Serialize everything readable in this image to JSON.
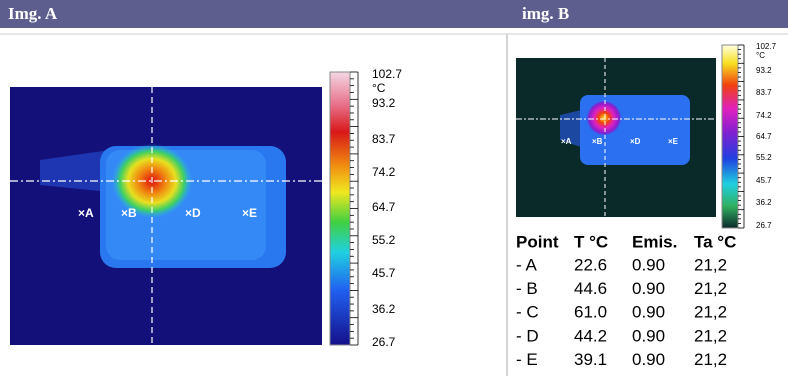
{
  "panels": [
    {
      "title": "Img. A",
      "scale": [
        "102.7",
        "°C",
        "93.2",
        "83.7",
        "74.2",
        "64.7",
        "55.2",
        "45.7",
        "36.2",
        "26.7"
      ],
      "markers": [
        "×A",
        "×B",
        "×D",
        "×E"
      ]
    },
    {
      "title": "img. B",
      "scale": [
        "102.7",
        "°C",
        "93.2",
        "83.7",
        "74.2",
        "64.7",
        "55.2",
        "45.7",
        "36.2",
        "26.7"
      ],
      "markers": [
        "×A",
        "×B",
        "×D",
        "×E"
      ]
    }
  ],
  "table": {
    "header": [
      "Point",
      "T °C",
      "Emis.",
      "Ta °C"
    ],
    "rows": [
      [
        "- A",
        "22.6",
        "0.90",
        "21,2"
      ],
      [
        "- B",
        "44.6",
        "0.90",
        "21,2"
      ],
      [
        "- C",
        "61.0",
        "0.90",
        "21,2"
      ],
      [
        "- D",
        "44.2",
        "0.90",
        "21,2"
      ],
      [
        "- E",
        "39.1",
        "0.90",
        "21,2"
      ]
    ]
  }
}
